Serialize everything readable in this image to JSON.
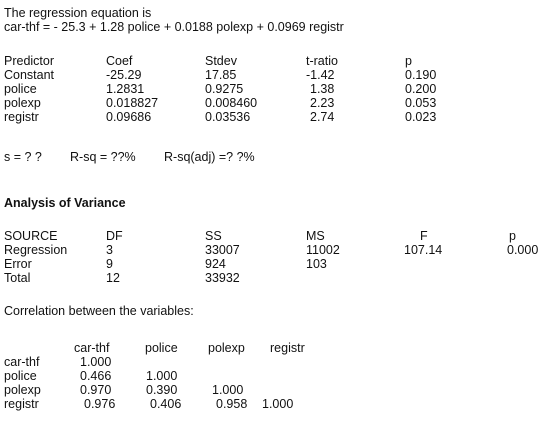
{
  "intro": {
    "line1": "The regression equation is",
    "line2": "car-thf = - 25.3 + 1.28 police + 0.0188 polexp + 0.0969 registr"
  },
  "coef_table": {
    "headers": [
      "Predictor",
      "Coef",
      "Stdev",
      "t-ratio",
      "p"
    ],
    "rows": [
      [
        "Constant",
        "-25.29",
        "17.85",
        "-1.42",
        "0.190"
      ],
      [
        "police",
        "1.2831",
        "0.9275",
        "1.38",
        "0.200"
      ],
      [
        "polexp",
        "0.018827",
        "0.008460",
        "2.23",
        "0.053"
      ],
      [
        "registr",
        "0.09686",
        "0.03536",
        "2.74",
        "0.023"
      ]
    ]
  },
  "summary": {
    "s": "s = ? ?",
    "rsq": "R-sq = ??%",
    "rsq_adj": "R-sq(adj) =? ?%"
  },
  "anova": {
    "title": "Analysis of Variance",
    "headers": [
      "SOURCE",
      "DF",
      "SS",
      "MS",
      "F",
      "p"
    ],
    "rows": [
      [
        "Regression",
        "3",
        "33007",
        "11002",
        "107.14",
        "0.000"
      ],
      [
        "Error",
        "9",
        "924",
        "103",
        "",
        ""
      ],
      [
        "Total",
        "12",
        "33932",
        "",
        "",
        ""
      ]
    ]
  },
  "correlation": {
    "title": "Correlation between the variables:",
    "headers": [
      "car-thf",
      "police",
      "polexp",
      "registr"
    ],
    "rows": [
      [
        "car-thf",
        "1.000",
        "",
        "",
        ""
      ],
      [
        "police",
        "0.466",
        "1.000",
        "",
        ""
      ],
      [
        "polexp",
        "0.970",
        "0.390",
        "1.000",
        ""
      ],
      [
        "registr",
        "0.976",
        "0.406",
        "0.958",
        "1.000"
      ]
    ]
  }
}
